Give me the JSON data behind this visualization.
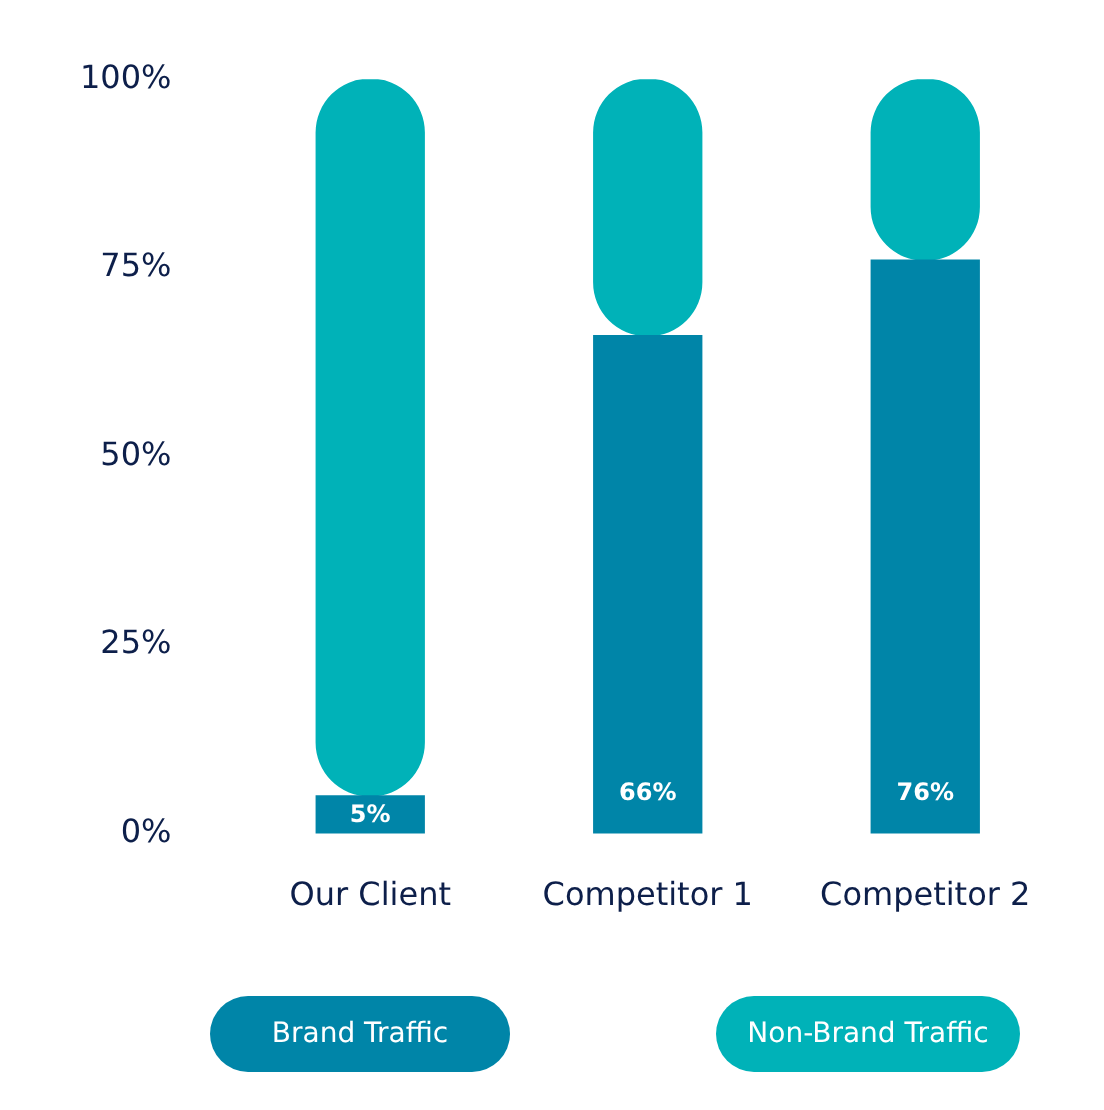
{
  "chart_data": {
    "type": "bar",
    "stacked": true,
    "categories": [
      "Our Client",
      "Competitor 1",
      "Competitor 2"
    ],
    "series": [
      {
        "name": "Brand Traffic",
        "color": "#0085a8",
        "values": [
          5,
          66,
          76
        ],
        "value_labels": [
          "5%",
          "66%",
          "76%"
        ]
      },
      {
        "name": "Non-Brand Traffic",
        "color": "#00b2b8",
        "values": [
          95,
          34,
          24
        ]
      }
    ],
    "ylim": [
      0,
      100
    ],
    "yticks": [
      {
        "value": 0,
        "label": "0%"
      },
      {
        "value": 25,
        "label": "25%"
      },
      {
        "value": 50,
        "label": "50%"
      },
      {
        "value": 75,
        "label": "75%"
      },
      {
        "value": 100,
        "label": "100%"
      }
    ],
    "grid": false,
    "legend": "bottom"
  }
}
